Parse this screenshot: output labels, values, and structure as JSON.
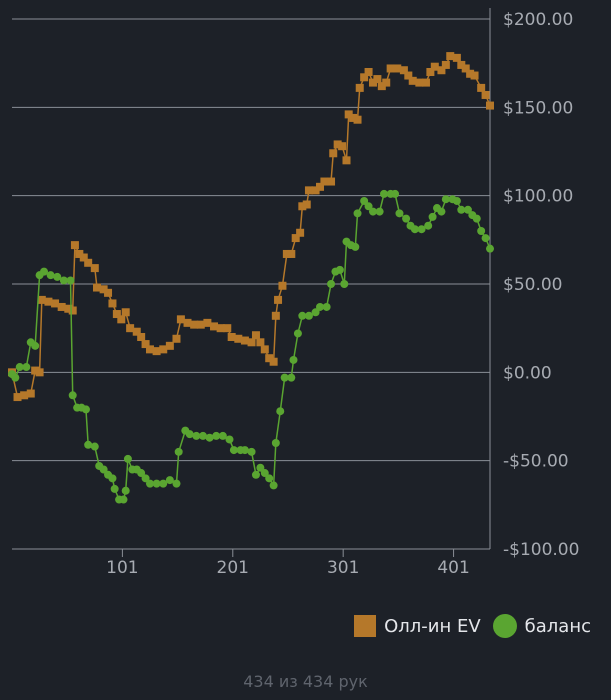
{
  "chart_data": {
    "type": "line",
    "x_ticks": [
      101,
      201,
      301,
      401
    ],
    "y_ticks": [
      200,
      150,
      100,
      50,
      0,
      -50,
      -100
    ],
    "y_tick_labels": [
      "$200.00",
      "$150.00",
      "$100.00",
      "$50.00",
      "$0.00",
      "-$50.00",
      "-$100.00"
    ],
    "xlim": [
      1,
      434
    ],
    "ylim": [
      -100,
      200
    ],
    "grid": true,
    "legend_position": "bottom-right",
    "series": [
      {
        "name": "Олл-ин EV",
        "color": "#b5782a",
        "marker": "square",
        "points": [
          [
            1,
            0
          ],
          [
            6,
            -14
          ],
          [
            12,
            -13
          ],
          [
            18,
            -12
          ],
          [
            22,
            1
          ],
          [
            26,
            0
          ],
          [
            28,
            41
          ],
          [
            34,
            40
          ],
          [
            40,
            39
          ],
          [
            46,
            37
          ],
          [
            52,
            36
          ],
          [
            56,
            35
          ],
          [
            58,
            72
          ],
          [
            62,
            67
          ],
          [
            66,
            65
          ],
          [
            70,
            62
          ],
          [
            76,
            59
          ],
          [
            78,
            48
          ],
          [
            84,
            47
          ],
          [
            88,
            45
          ],
          [
            92,
            39
          ],
          [
            96,
            33
          ],
          [
            100,
            30
          ],
          [
            104,
            34
          ],
          [
            108,
            25
          ],
          [
            114,
            23
          ],
          [
            118,
            20
          ],
          [
            122,
            16
          ],
          [
            126,
            13
          ],
          [
            132,
            12
          ],
          [
            138,
            13
          ],
          [
            144,
            15
          ],
          [
            150,
            19
          ],
          [
            154,
            30
          ],
          [
            160,
            28
          ],
          [
            166,
            27
          ],
          [
            172,
            27
          ],
          [
            178,
            28
          ],
          [
            184,
            26
          ],
          [
            190,
            25
          ],
          [
            196,
            25
          ],
          [
            200,
            20
          ],
          [
            206,
            19
          ],
          [
            212,
            18
          ],
          [
            218,
            17
          ],
          [
            222,
            21
          ],
          [
            226,
            17
          ],
          [
            230,
            13
          ],
          [
            234,
            8
          ],
          [
            238,
            6
          ],
          [
            240,
            32
          ],
          [
            242,
            41
          ],
          [
            246,
            49
          ],
          [
            250,
            67
          ],
          [
            254,
            67
          ],
          [
            258,
            76
          ],
          [
            262,
            79
          ],
          [
            264,
            94
          ],
          [
            268,
            95
          ],
          [
            270,
            103
          ],
          [
            276,
            103
          ],
          [
            280,
            105
          ],
          [
            284,
            108
          ],
          [
            290,
            108
          ],
          [
            292,
            124
          ],
          [
            296,
            129
          ],
          [
            300,
            128
          ],
          [
            304,
            120
          ],
          [
            306,
            146
          ],
          [
            310,
            144
          ],
          [
            314,
            143
          ],
          [
            316,
            161
          ],
          [
            320,
            167
          ],
          [
            324,
            170
          ],
          [
            328,
            164
          ],
          [
            332,
            166
          ],
          [
            336,
            162
          ],
          [
            340,
            164
          ],
          [
            344,
            172
          ],
          [
            350,
            172
          ],
          [
            356,
            171
          ],
          [
            360,
            168
          ],
          [
            364,
            165
          ],
          [
            370,
            164
          ],
          [
            376,
            164
          ],
          [
            380,
            170
          ],
          [
            384,
            173
          ],
          [
            390,
            171
          ],
          [
            394,
            174
          ],
          [
            398,
            179
          ],
          [
            404,
            178
          ],
          [
            408,
            174
          ],
          [
            412,
            172
          ],
          [
            416,
            169
          ],
          [
            420,
            168
          ],
          [
            426,
            161
          ],
          [
            430,
            157
          ],
          [
            434,
            151
          ]
        ]
      },
      {
        "name": "баланс",
        "color": "#5aa531",
        "marker": "circle",
        "points": [
          [
            1,
            -1
          ],
          [
            4,
            -3
          ],
          [
            8,
            3
          ],
          [
            14,
            3
          ],
          [
            18,
            17
          ],
          [
            22,
            15
          ],
          [
            26,
            55
          ],
          [
            30,
            57
          ],
          [
            36,
            55
          ],
          [
            42,
            54
          ],
          [
            48,
            52
          ],
          [
            54,
            52
          ],
          [
            56,
            -13
          ],
          [
            60,
            -20
          ],
          [
            64,
            -20
          ],
          [
            68,
            -21
          ],
          [
            70,
            -41
          ],
          [
            76,
            -42
          ],
          [
            80,
            -53
          ],
          [
            84,
            -55
          ],
          [
            88,
            -58
          ],
          [
            92,
            -60
          ],
          [
            94,
            -66
          ],
          [
            98,
            -72
          ],
          [
            102,
            -72
          ],
          [
            104,
            -67
          ],
          [
            106,
            -49
          ],
          [
            110,
            -55
          ],
          [
            114,
            -55
          ],
          [
            118,
            -57
          ],
          [
            122,
            -60
          ],
          [
            126,
            -63
          ],
          [
            132,
            -63
          ],
          [
            138,
            -63
          ],
          [
            144,
            -61
          ],
          [
            150,
            -63
          ],
          [
            152,
            -45
          ],
          [
            158,
            -33
          ],
          [
            162,
            -35
          ],
          [
            168,
            -36
          ],
          [
            174,
            -36
          ],
          [
            180,
            -37
          ],
          [
            186,
            -36
          ],
          [
            192,
            -36
          ],
          [
            198,
            -38
          ],
          [
            202,
            -44
          ],
          [
            208,
            -44
          ],
          [
            212,
            -44
          ],
          [
            218,
            -45
          ],
          [
            222,
            -58
          ],
          [
            226,
            -54
          ],
          [
            230,
            -57
          ],
          [
            234,
            -60
          ],
          [
            238,
            -64
          ],
          [
            240,
            -40
          ],
          [
            244,
            -22
          ],
          [
            248,
            -3
          ],
          [
            254,
            -3
          ],
          [
            256,
            7
          ],
          [
            260,
            22
          ],
          [
            264,
            32
          ],
          [
            270,
            32
          ],
          [
            276,
            34
          ],
          [
            280,
            37
          ],
          [
            286,
            37
          ],
          [
            290,
            50
          ],
          [
            294,
            57
          ],
          [
            298,
            58
          ],
          [
            302,
            50
          ],
          [
            304,
            74
          ],
          [
            308,
            72
          ],
          [
            312,
            71
          ],
          [
            314,
            90
          ],
          [
            320,
            97
          ],
          [
            324,
            94
          ],
          [
            328,
            91
          ],
          [
            334,
            91
          ],
          [
            338,
            101
          ],
          [
            344,
            101
          ],
          [
            348,
            101
          ],
          [
            352,
            90
          ],
          [
            358,
            87
          ],
          [
            362,
            83
          ],
          [
            366,
            81
          ],
          [
            372,
            81
          ],
          [
            378,
            83
          ],
          [
            382,
            88
          ],
          [
            386,
            93
          ],
          [
            390,
            91
          ],
          [
            394,
            98
          ],
          [
            400,
            98
          ],
          [
            404,
            97
          ],
          [
            408,
            92
          ],
          [
            414,
            92
          ],
          [
            418,
            89
          ],
          [
            422,
            87
          ],
          [
            426,
            80
          ],
          [
            430,
            76
          ],
          [
            434,
            70
          ]
        ]
      }
    ]
  },
  "footer_text": "434 из 434 рук"
}
